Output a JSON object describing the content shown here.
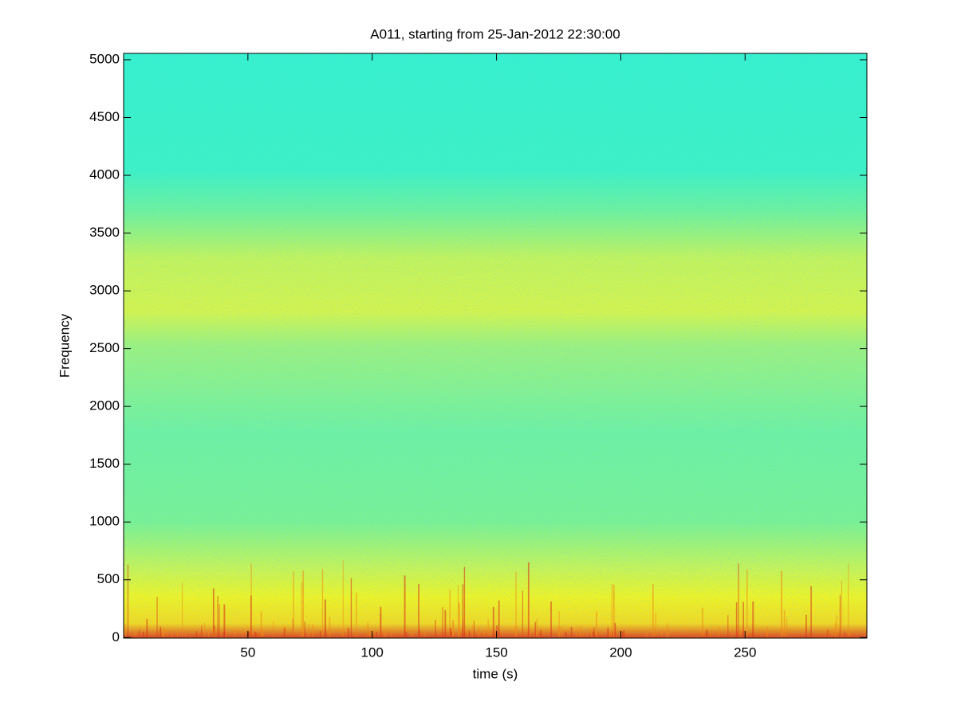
{
  "chart_data": {
    "type": "spectrogram",
    "title": "A011, starting from 25-Jan-2012 22:30:00",
    "xlabel": "time (s)",
    "ylabel": "Frequency",
    "xlim": [
      0,
      299
    ],
    "ylim": [
      -5,
      5055
    ],
    "xticks": [
      50,
      100,
      150,
      200,
      250
    ],
    "yticks": [
      0,
      500,
      1000,
      1500,
      2000,
      2500,
      3000,
      3500,
      4000,
      4500,
      5000
    ]
  }
}
